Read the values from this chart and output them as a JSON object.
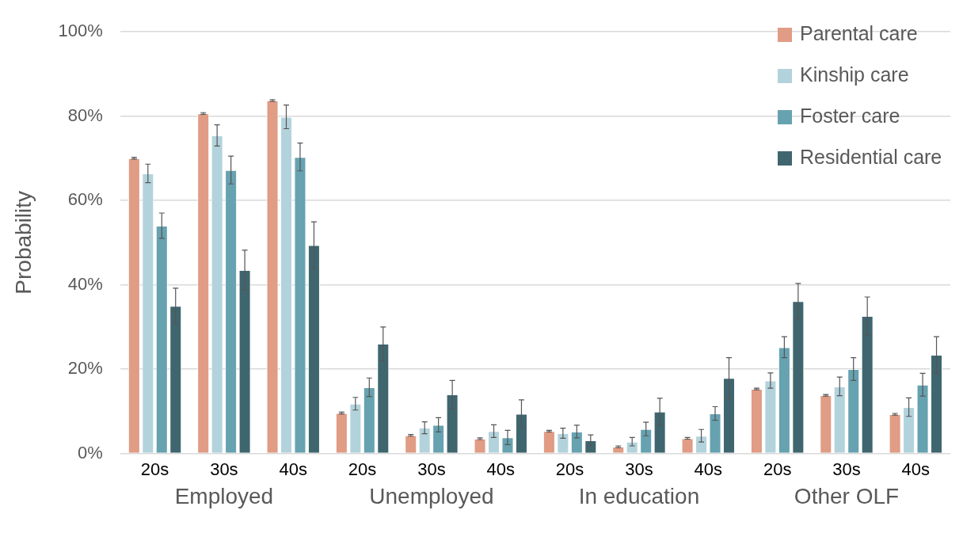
{
  "chart_data": {
    "type": "bar",
    "ylabel": "Probability",
    "categories": [
      "20s",
      "30s",
      "40s",
      "20s",
      "30s",
      "40s",
      "20s",
      "30s",
      "40s",
      "20s",
      "30s",
      "40s"
    ],
    "annotations": [
      "Employed",
      "Unemployed",
      "In education",
      "Other OLF"
    ],
    "series": [
      {
        "name": "Parental care",
        "color": "#e09c84",
        "values": [
          70,
          80.6,
          83.7,
          9.6,
          4.3,
          3.5,
          5.3,
          1.6,
          3.6,
          15.3,
          13.8,
          9.3
        ],
        "errors": [
          0.2,
          0.2,
          0.2,
          0.2,
          0.2,
          0.2,
          0.2,
          0.2,
          0.2,
          0.2,
          0.2,
          0.2
        ]
      },
      {
        "name": "Kinship care",
        "color": "#b3d3dc",
        "values": [
          66.4,
          75.4,
          79.8,
          11.8,
          6.1,
          5.3,
          4.8,
          2.8,
          4.2,
          17.3,
          15.9,
          11
        ],
        "errors": [
          2.2,
          2.5,
          2.8,
          1.5,
          1.4,
          1.5,
          1.2,
          1,
          1.5,
          1.8,
          2.2,
          2.2
        ]
      },
      {
        "name": "Foster care",
        "color": "#67a2b0",
        "values": [
          54,
          67.2,
          70.3,
          15.7,
          6.8,
          3.8,
          5.2,
          5.8,
          9.5,
          25.2,
          20,
          16.3
        ],
        "errors": [
          3,
          3.3,
          3.3,
          2.2,
          1.7,
          1.7,
          1.5,
          1.6,
          1.6,
          2.5,
          2.7,
          2.7
        ]
      },
      {
        "name": "Residential care",
        "color": "#3f666f",
        "values": [
          35,
          43.5,
          49.4,
          26,
          14,
          9.4,
          3.1,
          9.9,
          17.9,
          36.1,
          32.6,
          23.4
        ],
        "errors": [
          4.2,
          4.7,
          5.5,
          4,
          3.3,
          3.3,
          1.3,
          3.2,
          4.8,
          4.2,
          4.5,
          4.3
        ]
      }
    ],
    "ylim": [
      0,
      100
    ],
    "yticks": [
      {
        "value": 0,
        "label": "0%"
      },
      {
        "value": 20,
        "label": "20%"
      },
      {
        "value": 40,
        "label": "40%"
      },
      {
        "value": 60,
        "label": "60%"
      },
      {
        "value": 80,
        "label": "80%"
      },
      {
        "value": 100,
        "label": "100%"
      }
    ],
    "grid": "y",
    "legend": "top right"
  }
}
